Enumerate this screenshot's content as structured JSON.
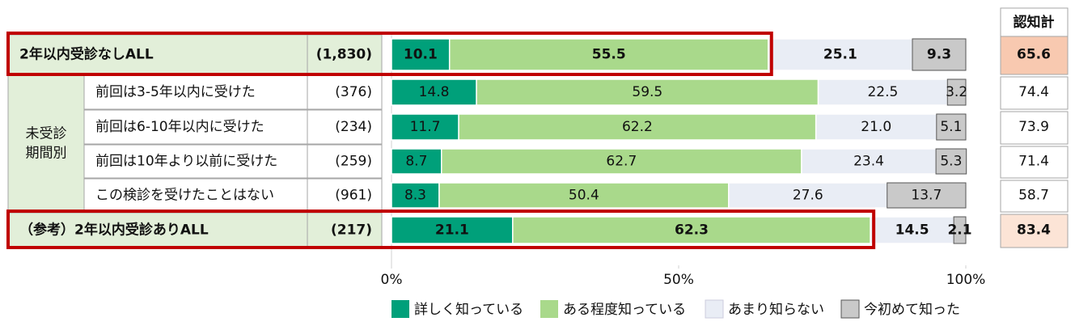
{
  "chart_data": {
    "type": "stacked_bar_h",
    "categories": [
      "2年以内受診なしALL",
      "前回は3-5年以内に受けた",
      "前回は6-10年以内に受けた",
      "前回は10年より以前に受けた",
      "この検診を受けたことはない",
      "（参考）2年以内受診ありALL"
    ],
    "sample_sizes": [
      "(1,830)",
      "(376)",
      "(234)",
      "(259)",
      "(961)",
      "(217)"
    ],
    "group_label": [
      "未受診",
      "期間別"
    ],
    "series": [
      {
        "name": "詳しく知っている",
        "color": "#00a07a",
        "values": [
          10.1,
          14.8,
          11.7,
          8.7,
          8.3,
          21.1
        ],
        "value_labels": [
          "10.1",
          "14.8",
          "11.7",
          "8.7",
          "8.3",
          "21.1"
        ]
      },
      {
        "name": "ある程度知っている",
        "color": "#a9d98b",
        "values": [
          55.5,
          59.5,
          62.2,
          62.7,
          50.4,
          62.3
        ],
        "value_labels": [
          "55.5",
          "59.5",
          "62.2",
          "62.7",
          "50.4",
          "62.3"
        ]
      },
      {
        "name": "あまり知らない",
        "color": "#e9edf5",
        "values": [
          25.1,
          22.5,
          21.0,
          23.4,
          27.6,
          14.5
        ],
        "value_labels": [
          "25.1",
          "22.5",
          "21.0",
          "23.4",
          "27.6",
          "14.5"
        ]
      },
      {
        "name": "今初めて知った",
        "color": "#c9c9c9",
        "values": [
          9.3,
          3.2,
          5.1,
          5.3,
          13.7,
          2.1
        ],
        "value_labels": [
          "9.3",
          "3.2",
          "5.1",
          "5.3",
          "13.7",
          "2.1"
        ]
      }
    ],
    "totals": {
      "title": "認知計",
      "values": [
        65.6,
        74.4,
        73.9,
        71.4,
        58.7,
        83.4
      ]
    },
    "xlim": [
      0,
      100
    ],
    "xticks": [
      {
        "value": 0,
        "label": "0%"
      },
      {
        "value": 50,
        "label": "50%"
      },
      {
        "value": 100,
        "label": "100%"
      }
    ]
  }
}
